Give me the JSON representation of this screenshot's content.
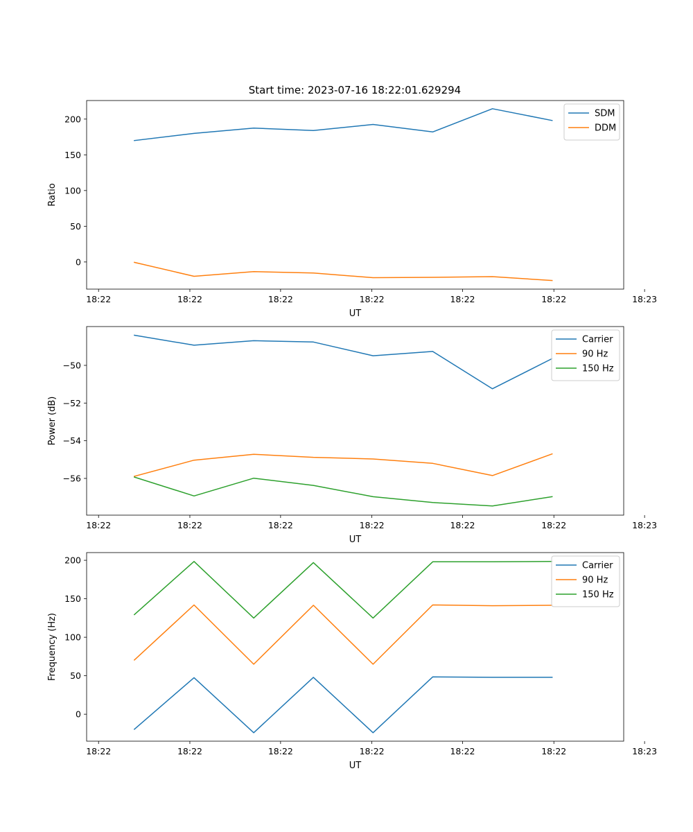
{
  "figure": {
    "title": "Start time: 2023-07-16 18:22:01.629294"
  },
  "colors": {
    "blue": "#1f77b4",
    "orange": "#ff7f0e",
    "green": "#2ca02c"
  },
  "chart_data": [
    {
      "type": "line",
      "title": "Start time: 2023-07-16 18:22:01.629294",
      "xlabel": "UT",
      "ylabel": "Ratio",
      "x": [
        1,
        2,
        3,
        4,
        5,
        6,
        7,
        8
      ],
      "xlim": [
        0.2,
        9.2
      ],
      "xticks": [
        0.4,
        1.93,
        3.45,
        4.98,
        6.5,
        8.03,
        9.55
      ],
      "xticklabels": [
        "18:22",
        "18:22",
        "18:22",
        "18:22",
        "18:22",
        "18:22",
        "18:23"
      ],
      "ylim": [
        -38,
        226
      ],
      "yticks": [
        0,
        50,
        100,
        150,
        200
      ],
      "yticklabels": [
        "0",
        "50",
        "100",
        "150",
        "200"
      ],
      "legend_position": "upper right",
      "series": [
        {
          "name": "SDM",
          "color": "#1f77b4",
          "values": [
            170,
            180,
            187.5,
            184,
            192.5,
            182,
            214.5,
            198
          ]
        },
        {
          "name": "DDM",
          "color": "#ff7f0e",
          "values": [
            -0.5,
            -20,
            -13.5,
            -15.5,
            -22,
            -21.5,
            -20.5,
            -26
          ]
        }
      ]
    },
    {
      "type": "line",
      "title": "",
      "xlabel": "UT",
      "ylabel": "Power (dB)",
      "x": [
        1,
        2,
        3,
        4,
        5,
        6,
        7,
        8
      ],
      "xlim": [
        0.2,
        9.2
      ],
      "xticks": [
        0.4,
        1.93,
        3.45,
        4.98,
        6.5,
        8.03,
        9.55
      ],
      "xticklabels": [
        "18:22",
        "18:22",
        "18:22",
        "18:22",
        "18:22",
        "18:22",
        "18:23"
      ],
      "ylim": [
        -57.95,
        -47.94
      ],
      "yticks": [
        -56,
        -54,
        -52,
        -50
      ],
      "yticklabels": [
        "−56",
        "−54",
        "−52",
        "−50"
      ],
      "legend_position": "upper right",
      "series": [
        {
          "name": "Carrier",
          "color": "#1f77b4",
          "values": [
            -48.4,
            -48.93,
            -48.69,
            -48.76,
            -49.49,
            -49.26,
            -51.24,
            -49.64
          ]
        },
        {
          "name": "90 Hz",
          "color": "#ff7f0e",
          "values": [
            -55.89,
            -55.03,
            -54.72,
            -54.88,
            -54.97,
            -55.2,
            -55.85,
            -54.7
          ]
        },
        {
          "name": "150 Hz",
          "color": "#2ca02c",
          "values": [
            -55.93,
            -56.93,
            -55.99,
            -56.37,
            -56.97,
            -57.28,
            -57.46,
            -56.97
          ]
        }
      ]
    },
    {
      "type": "line",
      "title": "",
      "xlabel": "UT",
      "ylabel": "Frequency (Hz)",
      "x": [
        1,
        2,
        3,
        4,
        5,
        6,
        7,
        8
      ],
      "xlim": [
        0.2,
        9.2
      ],
      "xticks": [
        0.4,
        1.93,
        3.45,
        4.98,
        6.5,
        8.03,
        9.55
      ],
      "xticklabels": [
        "18:22",
        "18:22",
        "18:22",
        "18:22",
        "18:22",
        "18:22",
        "18:23"
      ],
      "ylim": [
        -35,
        210
      ],
      "yticks": [
        0,
        50,
        100,
        150,
        200
      ],
      "yticklabels": [
        "0",
        "50",
        "100",
        "150",
        "200"
      ],
      "legend_position": "upper right",
      "series": [
        {
          "name": "Carrier",
          "color": "#1f77b4",
          "values": [
            -19.5,
            47.5,
            -24,
            48,
            -24,
            48.5,
            48,
            48
          ]
        },
        {
          "name": "90 Hz",
          "color": "#ff7f0e",
          "values": [
            70.5,
            142,
            65,
            141.5,
            65,
            142,
            141,
            141.5
          ]
        },
        {
          "name": "150 Hz",
          "color": "#2ca02c",
          "values": [
            129.5,
            198.5,
            125,
            197,
            125,
            198,
            198,
            198.5
          ]
        }
      ]
    }
  ]
}
